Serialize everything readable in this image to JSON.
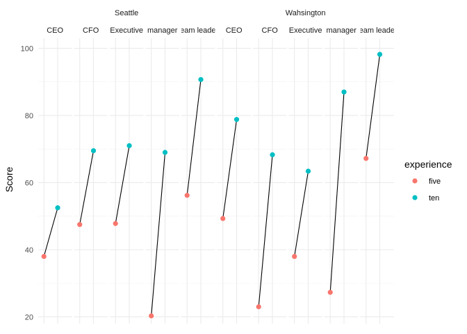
{
  "chart_data": {
    "type": "scatter",
    "ylabel": "Score",
    "xlabel": "",
    "ylim": [
      18,
      103
    ],
    "y_ticks": [
      20,
      40,
      60,
      80,
      100
    ],
    "grid": true,
    "legend_position": "right",
    "legend": {
      "title": "experience",
      "entries": [
        {
          "label": "five",
          "color": "#F8766D"
        },
        {
          "label": "ten",
          "color": "#00BFC4"
        }
      ]
    },
    "groups": [
      {
        "label": "Seattle",
        "panels": [
          {
            "label": "CEO",
            "five": 38,
            "ten": 52.5
          },
          {
            "label": "CFO",
            "five": 47.5,
            "ten": 69.5
          },
          {
            "label": "Executive",
            "five": 47.8,
            "ten": 71
          },
          {
            "label": "manager",
            "five": 20.3,
            "ten": 69
          },
          {
            "label": "team leader",
            "five": 56.2,
            "ten": 90.7
          }
        ]
      },
      {
        "label": "Wahsington",
        "panels": [
          {
            "label": "CEO",
            "five": 49.3,
            "ten": 78.8
          },
          {
            "label": "CFO",
            "five": 23,
            "ten": 68.3
          },
          {
            "label": "Executive",
            "five": 38,
            "ten": 63.4
          },
          {
            "label": "manager",
            "five": 27.3,
            "ten": 87
          },
          {
            "label": "team leader",
            "five": 67.2,
            "ten": 98.2
          }
        ]
      }
    ]
  }
}
